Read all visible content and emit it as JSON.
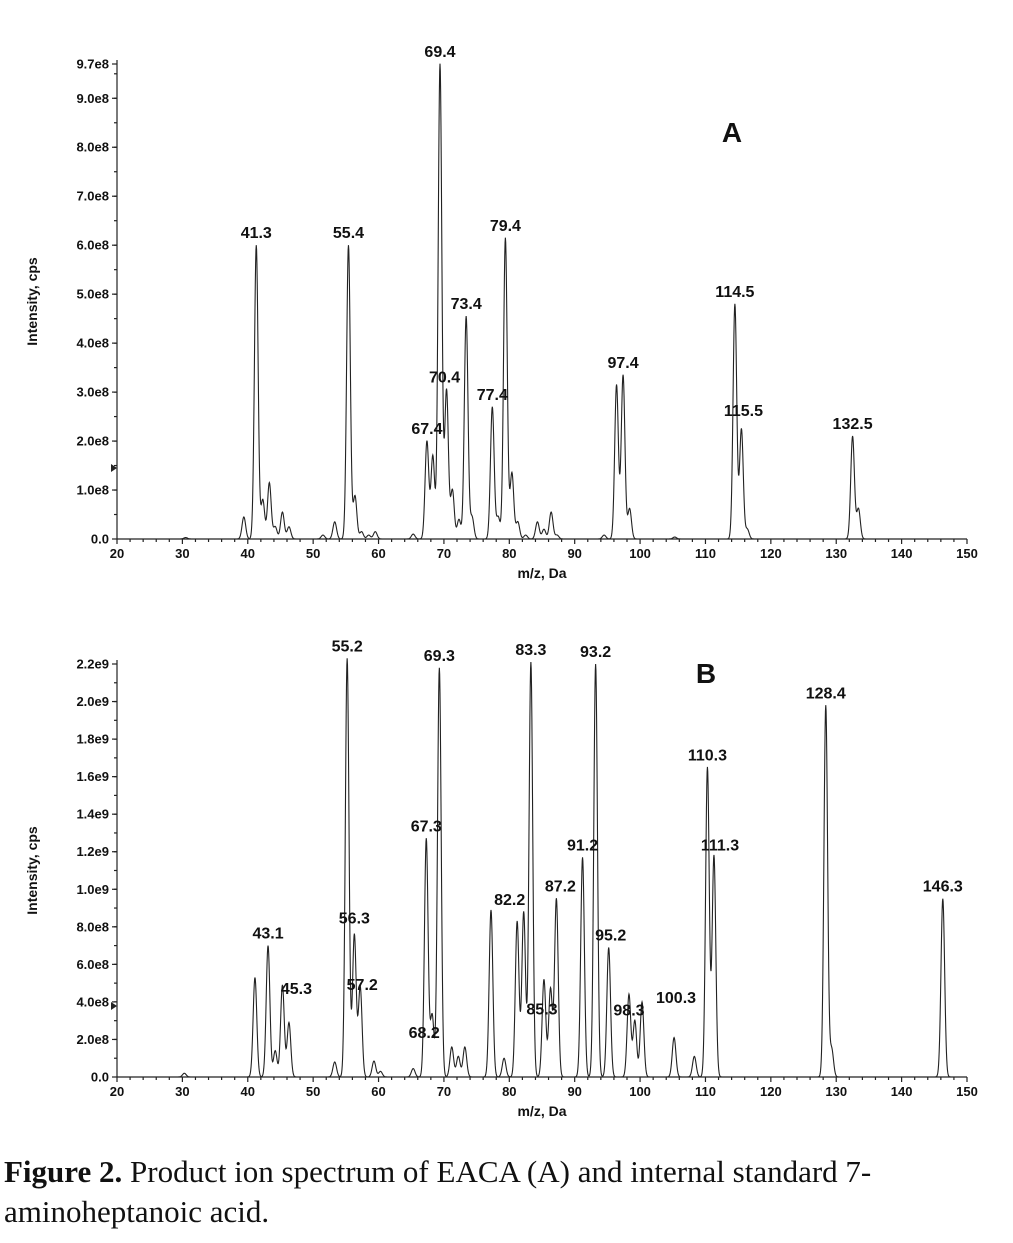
{
  "chart_data": [
    {
      "type": "line",
      "subtype": "mass-spectrum",
      "panel": "A",
      "xlabel": "m/z, Da",
      "ylabel": "Intensity, cps",
      "xlim": [
        20,
        150
      ],
      "ylim": [
        0,
        970000000
      ],
      "x_ticks": [
        20,
        30,
        40,
        50,
        60,
        70,
        80,
        90,
        100,
        110,
        120,
        130,
        140,
        150
      ],
      "y_ticks": [
        {
          "value": 0,
          "label": "0.0"
        },
        {
          "value": 100000000,
          "label": "1.0e8"
        },
        {
          "value": 200000000,
          "label": "2.0e8"
        },
        {
          "value": 300000000,
          "label": "3.0e8"
        },
        {
          "value": 400000000,
          "label": "4.0e8"
        },
        {
          "value": 500000000,
          "label": "5.0e8"
        },
        {
          "value": 600000000,
          "label": "6.0e8"
        },
        {
          "value": 700000000,
          "label": "7.0e8"
        },
        {
          "value": 800000000,
          "label": "8.0e8"
        },
        {
          "value": 900000000,
          "label": "9.0e8"
        },
        {
          "value": 970000000,
          "label": "9.7e8"
        }
      ],
      "peaks": [
        {
          "mz": 30.5,
          "intensity": 3000000
        },
        {
          "mz": 39.4,
          "intensity": 45000000
        },
        {
          "mz": 41.3,
          "intensity": 600000000,
          "label": "41.3"
        },
        {
          "mz": 42.3,
          "intensity": 80000000
        },
        {
          "mz": 43.3,
          "intensity": 115000000
        },
        {
          "mz": 44.2,
          "intensity": 25000000
        },
        {
          "mz": 45.3,
          "intensity": 55000000
        },
        {
          "mz": 46.3,
          "intensity": 25000000
        },
        {
          "mz": 51.5,
          "intensity": 8000000
        },
        {
          "mz": 53.3,
          "intensity": 35000000
        },
        {
          "mz": 55.4,
          "intensity": 600000000,
          "label": "55.4"
        },
        {
          "mz": 56.4,
          "intensity": 88000000
        },
        {
          "mz": 57.4,
          "intensity": 15000000
        },
        {
          "mz": 58.5,
          "intensity": 8000000
        },
        {
          "mz": 59.5,
          "intensity": 15000000
        },
        {
          "mz": 65.3,
          "intensity": 10000000
        },
        {
          "mz": 67.4,
          "intensity": 200000000,
          "label": "67.4"
        },
        {
          "mz": 68.3,
          "intensity": 170000000
        },
        {
          "mz": 69.4,
          "intensity": 970000000,
          "label": "69.4"
        },
        {
          "mz": 70.4,
          "intensity": 305000000,
          "label": "70.4"
        },
        {
          "mz": 71.3,
          "intensity": 100000000
        },
        {
          "mz": 72.3,
          "intensity": 40000000
        },
        {
          "mz": 73.4,
          "intensity": 455000000,
          "label": "73.4"
        },
        {
          "mz": 74.3,
          "intensity": 45000000
        },
        {
          "mz": 77.4,
          "intensity": 270000000,
          "label": "77.4"
        },
        {
          "mz": 78.3,
          "intensity": 45000000
        },
        {
          "mz": 79.4,
          "intensity": 615000000,
          "label": "79.4"
        },
        {
          "mz": 80.4,
          "intensity": 135000000
        },
        {
          "mz": 81.3,
          "intensity": 35000000
        },
        {
          "mz": 82.5,
          "intensity": 8000000
        },
        {
          "mz": 84.3,
          "intensity": 35000000
        },
        {
          "mz": 85.3,
          "intensity": 20000000
        },
        {
          "mz": 86.4,
          "intensity": 55000000
        },
        {
          "mz": 87.3,
          "intensity": 8000000
        },
        {
          "mz": 94.5,
          "intensity": 8000000
        },
        {
          "mz": 96.4,
          "intensity": 315000000
        },
        {
          "mz": 97.4,
          "intensity": 335000000,
          "label": "97.4"
        },
        {
          "mz": 98.4,
          "intensity": 62000000
        },
        {
          "mz": 105.3,
          "intensity": 4000000
        },
        {
          "mz": 114.5,
          "intensity": 480000000,
          "label": "114.5"
        },
        {
          "mz": 115.5,
          "intensity": 225000000,
          "label": "115.5"
        },
        {
          "mz": 116.4,
          "intensity": 20000000
        },
        {
          "mz": 132.5,
          "intensity": 210000000,
          "label": "132.5"
        },
        {
          "mz": 133.4,
          "intensity": 62000000
        }
      ]
    },
    {
      "type": "line",
      "subtype": "mass-spectrum",
      "panel": "B",
      "xlabel": "m/z, Da",
      "ylabel": "Intensity, cps",
      "xlim": [
        20,
        150
      ],
      "ylim": [
        0,
        2200000000
      ],
      "x_ticks": [
        20,
        30,
        40,
        50,
        60,
        70,
        80,
        90,
        100,
        110,
        120,
        130,
        140,
        150
      ],
      "y_ticks": [
        {
          "value": 0,
          "label": "0.0"
        },
        {
          "value": 200000000,
          "label": "2.0e8"
        },
        {
          "value": 400000000,
          "label": "4.0e8"
        },
        {
          "value": 600000000,
          "label": "6.0e8"
        },
        {
          "value": 800000000,
          "label": "8.0e8"
        },
        {
          "value": 1000000000,
          "label": "1.0e9"
        },
        {
          "value": 1200000000,
          "label": "1.2e9"
        },
        {
          "value": 1400000000,
          "label": "1.4e9"
        },
        {
          "value": 1600000000,
          "label": "1.6e9"
        },
        {
          "value": 1800000000,
          "label": "1.8e9"
        },
        {
          "value": 2000000000,
          "label": "2.0e9"
        },
        {
          "value": 2200000000,
          "label": "2.2e9"
        }
      ],
      "peaks": [
        {
          "mz": 30.3,
          "intensity": 20000000
        },
        {
          "mz": 41.1,
          "intensity": 530000000
        },
        {
          "mz": 43.1,
          "intensity": 700000000,
          "label": "43.1"
        },
        {
          "mz": 44.2,
          "intensity": 140000000
        },
        {
          "mz": 45.3,
          "intensity": 490000000,
          "label": "45.3"
        },
        {
          "mz": 46.3,
          "intensity": 290000000
        },
        {
          "mz": 53.3,
          "intensity": 80000000
        },
        {
          "mz": 55.2,
          "intensity": 2230000000,
          "label": "55.2"
        },
        {
          "mz": 56.3,
          "intensity": 760000000,
          "label": "56.3"
        },
        {
          "mz": 57.2,
          "intensity": 480000000,
          "label": "57.2"
        },
        {
          "mz": 59.3,
          "intensity": 85000000
        },
        {
          "mz": 60.3,
          "intensity": 30000000
        },
        {
          "mz": 65.3,
          "intensity": 45000000
        },
        {
          "mz": 67.3,
          "intensity": 1270000000,
          "label": "67.3"
        },
        {
          "mz": 68.2,
          "intensity": 330000000,
          "label": "68.2"
        },
        {
          "mz": 69.3,
          "intensity": 2180000000,
          "label": "69.3"
        },
        {
          "mz": 71.2,
          "intensity": 160000000
        },
        {
          "mz": 72.2,
          "intensity": 110000000
        },
        {
          "mz": 73.2,
          "intensity": 160000000
        },
        {
          "mz": 77.2,
          "intensity": 890000000
        },
        {
          "mz": 79.2,
          "intensity": 100000000
        },
        {
          "mz": 81.2,
          "intensity": 830000000
        },
        {
          "mz": 82.2,
          "intensity": 880000000,
          "label": "82.2"
        },
        {
          "mz": 83.3,
          "intensity": 2210000000,
          "label": "83.3"
        },
        {
          "mz": 85.3,
          "intensity": 520000000,
          "label": "85.3"
        },
        {
          "mz": 86.3,
          "intensity": 470000000
        },
        {
          "mz": 87.2,
          "intensity": 950000000,
          "label": "87.2"
        },
        {
          "mz": 91.2,
          "intensity": 1170000000,
          "label": "91.2"
        },
        {
          "mz": 93.2,
          "intensity": 2200000000,
          "label": "93.2"
        },
        {
          "mz": 95.2,
          "intensity": 690000000,
          "label": "95.2"
        },
        {
          "mz": 98.3,
          "intensity": 440000000,
          "label": "98.3"
        },
        {
          "mz": 99.2,
          "intensity": 300000000
        },
        {
          "mz": 100.3,
          "intensity": 400000000,
          "label": "100.3"
        },
        {
          "mz": 105.2,
          "intensity": 210000000
        },
        {
          "mz": 108.3,
          "intensity": 110000000
        },
        {
          "mz": 110.3,
          "intensity": 1650000000,
          "label": "110.3"
        },
        {
          "mz": 111.3,
          "intensity": 1180000000,
          "label": "111.3"
        },
        {
          "mz": 128.4,
          "intensity": 1980000000,
          "label": "128.4"
        },
        {
          "mz": 129.3,
          "intensity": 150000000
        },
        {
          "mz": 146.3,
          "intensity": 950000000,
          "label": "146.3"
        }
      ]
    }
  ],
  "caption": {
    "label": "Figure 2.",
    "text": " Product ion spectrum of EACA (A) and internal standard 7-aminoheptanoic acid."
  }
}
